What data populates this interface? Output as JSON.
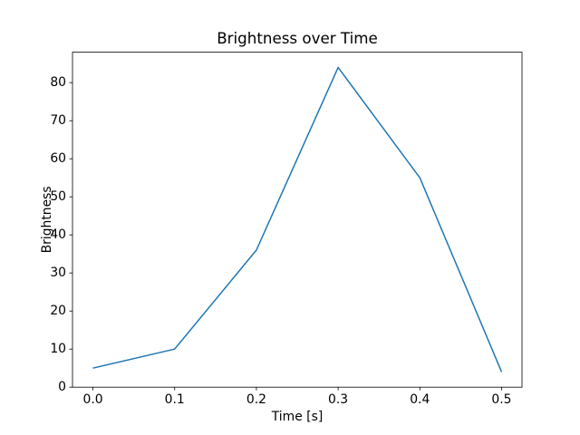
{
  "chart_data": {
    "type": "line",
    "title": "Brightness over Time",
    "xlabel": "Time [s]",
    "ylabel": "Brightness",
    "x": [
      0.0,
      0.1,
      0.2,
      0.3,
      0.4,
      0.5
    ],
    "series": [
      {
        "name": "Brightness",
        "values": [
          5,
          10,
          36,
          84,
          55,
          4
        ]
      }
    ],
    "xlim": [
      -0.025,
      0.525
    ],
    "ylim": [
      0,
      88
    ],
    "xtick_values": [
      0.0,
      0.1,
      0.2,
      0.3,
      0.4,
      0.5
    ],
    "xtick_labels": [
      "0.0",
      "0.1",
      "0.2",
      "0.3",
      "0.4",
      "0.5"
    ],
    "ytick_values": [
      0,
      10,
      20,
      30,
      40,
      50,
      60,
      70,
      80
    ],
    "ytick_labels": [
      "0",
      "10",
      "20",
      "30",
      "40",
      "50",
      "60",
      "70",
      "80"
    ],
    "grid": false,
    "legend": null,
    "line_color": "#1f77b4",
    "background_color": "#ffffff",
    "text_color": "#000000",
    "spine_color": "#000000"
  }
}
